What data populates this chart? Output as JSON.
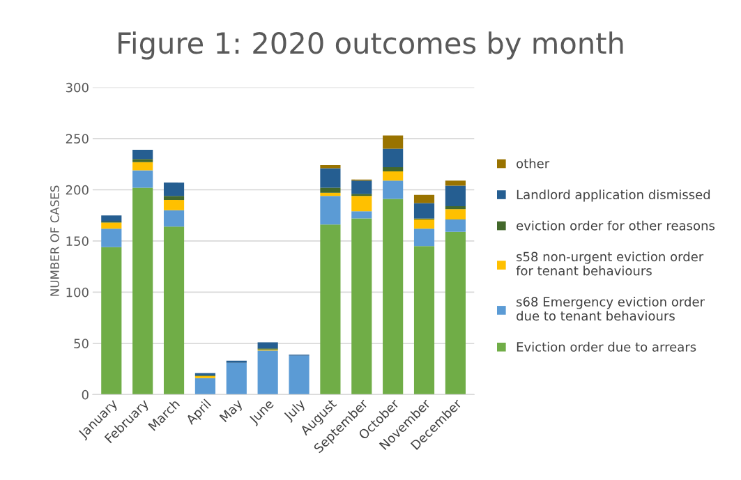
{
  "chart_data": {
    "type": "bar",
    "title": "Figure 1: 2020 outcomes by month",
    "ylabel": "NUMBER OF CASES",
    "categories": [
      "January",
      "February",
      "March",
      "April",
      "May",
      "June",
      "July",
      "August",
      "September",
      "October",
      "November",
      "December"
    ],
    "stacked": true,
    "series": [
      {
        "name": "Eviction order due to arrears",
        "color": "#70ad47",
        "values": [
          144,
          202,
          164,
          0,
          0,
          0,
          0,
          166,
          172,
          191,
          145,
          159
        ]
      },
      {
        "name": "s68 Emergency eviction order\ndue to tenant behaviours",
        "color": "#5b9bd5",
        "values": [
          18,
          17,
          16,
          16,
          31,
          43,
          38,
          28,
          7,
          18,
          17,
          12
        ]
      },
      {
        "name": "s58 non-urgent eviction order\nfor tenant behaviours",
        "color": "#ffc000",
        "values": [
          6,
          8,
          10,
          2,
          0,
          1,
          0,
          3,
          15,
          9,
          9,
          10
        ]
      },
      {
        "name": "eviction order for other reasons",
        "color": "#43682b",
        "values": [
          1,
          3,
          4,
          1,
          0,
          1,
          0,
          5,
          2,
          4,
          1,
          3
        ]
      },
      {
        "name": "Landlord application dismissed",
        "color": "#255e91",
        "values": [
          6,
          9,
          13,
          2,
          2,
          6,
          1,
          19,
          13,
          18,
          15,
          20
        ]
      },
      {
        "name": "other",
        "color": "#997300",
        "values": [
          0,
          0,
          0,
          0,
          0,
          0,
          0,
          3,
          1,
          13,
          8,
          5
        ]
      }
    ],
    "ylim": [
      0,
      300
    ],
    "yticks": [
      0,
      50,
      100,
      150,
      200,
      250,
      300
    ],
    "grid": "y",
    "legend": "right"
  }
}
